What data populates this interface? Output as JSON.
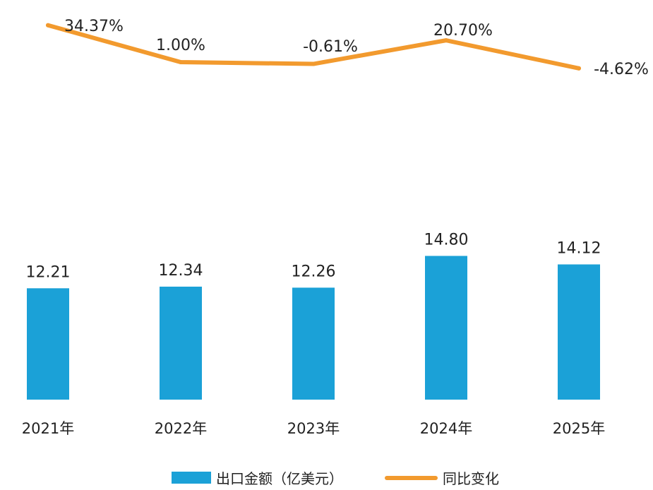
{
  "chart_data": {
    "type": "bar",
    "categories": [
      "2021年",
      "2022年",
      "2023年",
      "2024年",
      "2025年"
    ],
    "series": [
      {
        "name": "出口金额（亿美元）",
        "type": "bar",
        "values": [
          12.21,
          12.34,
          12.26,
          14.8,
          14.12
        ],
        "labels": [
          "12.21",
          "12.34",
          "12.26",
          "14.80",
          "14.12"
        ],
        "color": "#1BA1D7"
      },
      {
        "name": "同比变化",
        "type": "line",
        "values": [
          34.37,
          1.0,
          -0.61,
          20.7,
          -4.62
        ],
        "labels": [
          "34.37%",
          "1.00%",
          "-0.61%",
          "20.70%",
          "-4.62%"
        ],
        "color": "#F29A2E"
      }
    ],
    "legend_position": "bottom",
    "grid": false
  }
}
